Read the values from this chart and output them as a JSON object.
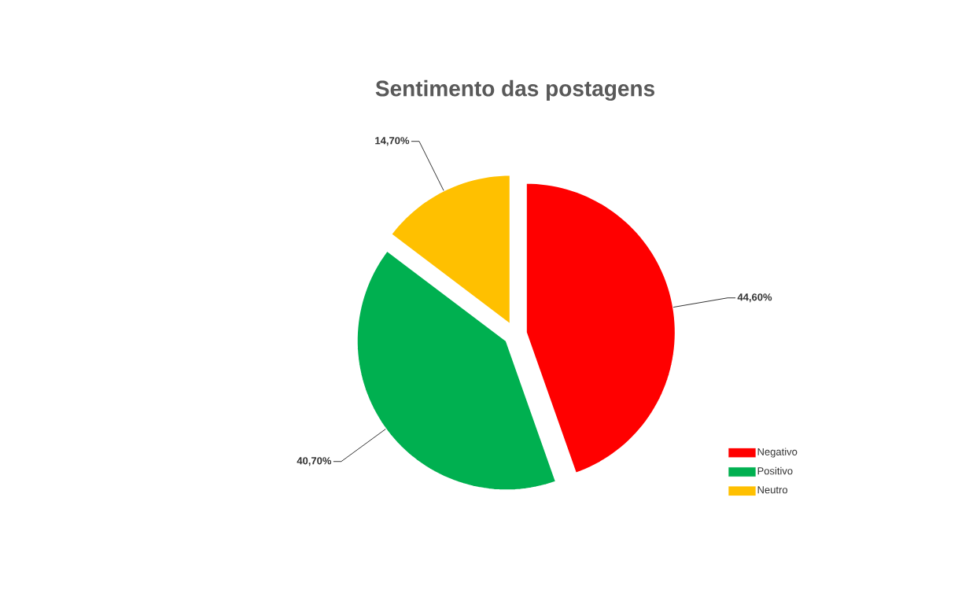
{
  "chart_data": {
    "type": "pie",
    "title": "Sentimento das postagens",
    "categories": [
      "Negativo",
      "Positivo",
      "Neutro"
    ],
    "values": [
      44.6,
      40.7,
      14.7
    ],
    "colors": [
      "#ff0000",
      "#00b050",
      "#ffc000"
    ],
    "value_labels": [
      "44,60%",
      "40,70%",
      "14,70%"
    ],
    "legend": "bottom right"
  }
}
